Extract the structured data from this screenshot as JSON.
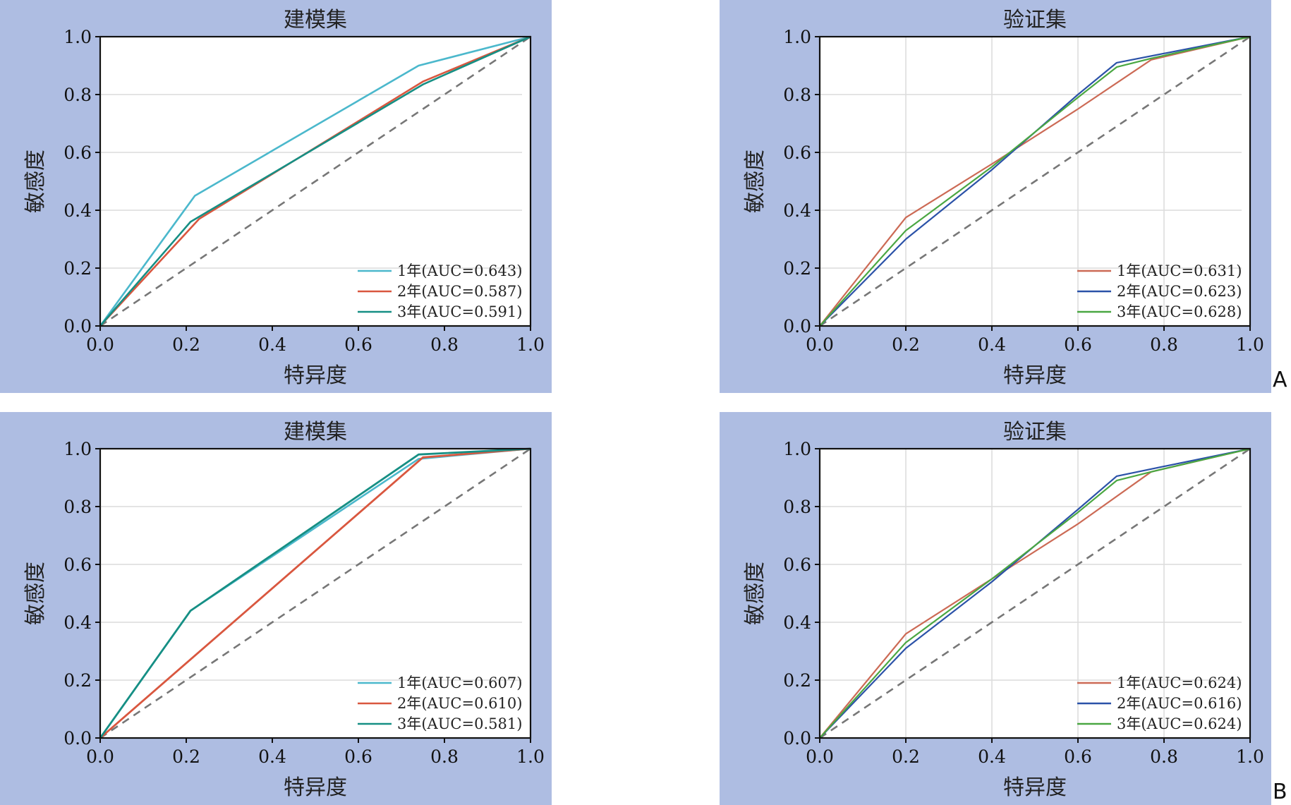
{
  "panel_letters": [
    "A",
    "B"
  ],
  "colors": {
    "panel_bg": "#aebde2",
    "diag": "#777777",
    "model_1y": "#4bb8cc",
    "model_2y": "#d9573f",
    "model_3y": "#168f84",
    "valid_1y": "#cc6a55",
    "valid_2y": "#2b52a8",
    "valid_3y": "#4aa742"
  },
  "chart_data": [
    {
      "type": "line",
      "title": "建模集",
      "xlabel": "特异度",
      "ylabel": "敏感度",
      "xlim": [
        0,
        1
      ],
      "ylim": [
        0,
        1
      ],
      "xticks": [
        "0.0",
        "0.2",
        "0.4",
        "0.6",
        "0.8",
        "1.0"
      ],
      "yticks": [
        "0.0",
        "0.2",
        "0.4",
        "0.6",
        "0.8",
        "1.0"
      ],
      "grid": "horizontal",
      "legend": "bottom-right",
      "series": [
        {
          "name": "1年(AUC=0.643)",
          "x": [
            0,
            0.22,
            0.74,
            1
          ],
          "y": [
            0,
            0.45,
            0.9,
            1
          ]
        },
        {
          "name": "2年(AUC=0.587)",
          "x": [
            0,
            0.23,
            0.75,
            1
          ],
          "y": [
            0,
            0.37,
            0.845,
            1
          ]
        },
        {
          "name": "3年(AUC=0.591)",
          "x": [
            0,
            0.21,
            0.75,
            1
          ],
          "y": [
            0,
            0.36,
            0.835,
            1
          ]
        }
      ]
    },
    {
      "type": "line",
      "title": "验证集",
      "xlabel": "特异度",
      "ylabel": "敏感度",
      "xlim": [
        0,
        1
      ],
      "ylim": [
        0,
        1
      ],
      "xticks": [
        "0.0",
        "0.2",
        "0.4",
        "0.6",
        "0.8",
        "1.0"
      ],
      "yticks": [
        "0.0",
        "0.2",
        "0.4",
        "0.6",
        "0.8",
        "1.0"
      ],
      "grid": "both",
      "legend": "bottom-right",
      "series": [
        {
          "name": "1年(AUC=0.631)",
          "x": [
            0,
            0.2,
            0.4,
            0.6,
            0.77,
            1
          ],
          "y": [
            0,
            0.375,
            0.56,
            0.75,
            0.92,
            1
          ]
        },
        {
          "name": "2年(AUC=0.623)",
          "x": [
            0,
            0.2,
            0.4,
            0.6,
            0.69,
            1
          ],
          "y": [
            0,
            0.3,
            0.54,
            0.8,
            0.91,
            1
          ]
        },
        {
          "name": "3年(AUC=0.628)",
          "x": [
            0,
            0.2,
            0.4,
            0.6,
            0.69,
            0.77,
            1
          ],
          "y": [
            0,
            0.33,
            0.55,
            0.79,
            0.895,
            0.925,
            1
          ]
        }
      ]
    },
    {
      "type": "line",
      "title": "建模集",
      "xlabel": "特异度",
      "ylabel": "敏感度",
      "xlim": [
        0,
        1
      ],
      "ylim": [
        0,
        1
      ],
      "xticks": [
        "0.0",
        "0.2",
        "0.4",
        "0.6",
        "0.8",
        "1.0"
      ],
      "yticks": [
        "0.0",
        "0.2",
        "0.4",
        "0.6",
        "0.8",
        "1.0"
      ],
      "grid": "horizontal",
      "legend": "bottom-right",
      "series": [
        {
          "name": "1年(AUC=0.607)",
          "x": [
            0,
            0.21,
            0.74,
            1
          ],
          "y": [
            0,
            0.44,
            0.965,
            1
          ]
        },
        {
          "name": "2年(AUC=0.610)",
          "x": [
            0,
            0.75,
            1
          ],
          "y": [
            0,
            0.97,
            1
          ]
        },
        {
          "name": "3年(AUC=0.581)",
          "x": [
            0,
            0.21,
            0.74,
            1
          ],
          "y": [
            0,
            0.44,
            0.98,
            1
          ]
        }
      ]
    },
    {
      "type": "line",
      "title": "验证集",
      "xlabel": "特异度",
      "ylabel": "敏感度",
      "xlim": [
        0,
        1
      ],
      "ylim": [
        0,
        1
      ],
      "xticks": [
        "0.0",
        "0.2",
        "0.4",
        "0.6",
        "0.8",
        "1.0"
      ],
      "yticks": [
        "0.0",
        "0.2",
        "0.4",
        "0.6",
        "0.8",
        "1.0"
      ],
      "grid": "both",
      "legend": "bottom-right",
      "series": [
        {
          "name": "1年(AUC=0.624)",
          "x": [
            0,
            0.2,
            0.4,
            0.6,
            0.77,
            1
          ],
          "y": [
            0,
            0.36,
            0.55,
            0.74,
            0.92,
            1
          ]
        },
        {
          "name": "2年(AUC=0.616)",
          "x": [
            0,
            0.2,
            0.4,
            0.6,
            0.69,
            1
          ],
          "y": [
            0,
            0.31,
            0.54,
            0.79,
            0.905,
            1
          ]
        },
        {
          "name": "3年(AUC=0.624)",
          "x": [
            0,
            0.2,
            0.4,
            0.6,
            0.69,
            0.77,
            1
          ],
          "y": [
            0,
            0.33,
            0.55,
            0.78,
            0.89,
            0.92,
            1
          ]
        }
      ]
    }
  ]
}
